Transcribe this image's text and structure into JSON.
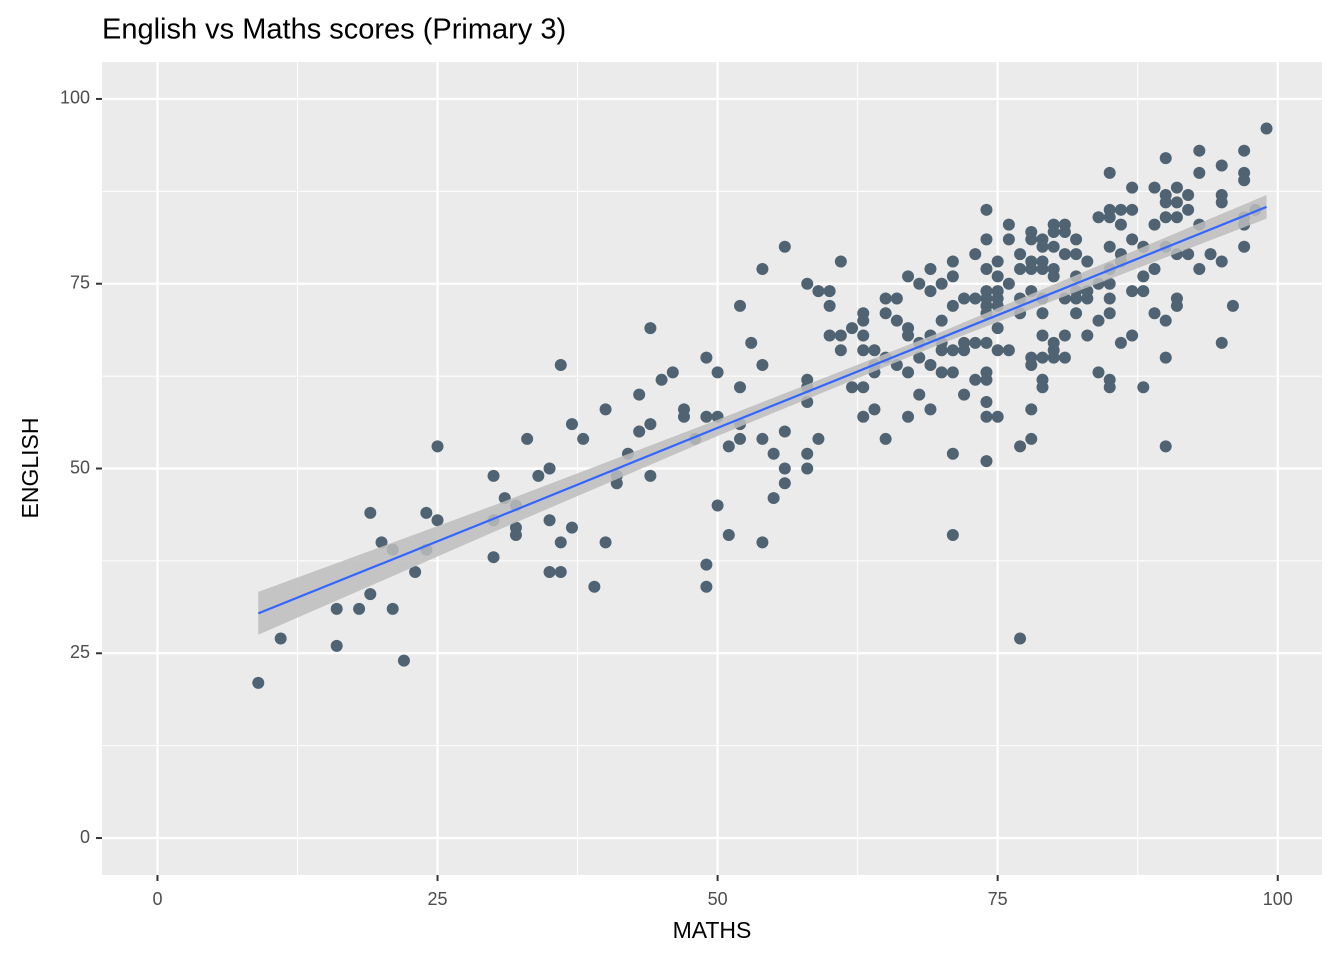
{
  "chart_data": {
    "type": "scatter",
    "title": "English vs Maths scores (Primary 3)",
    "x_label": "MATHS",
    "y_label": "ENGLISH",
    "x": [
      9,
      11,
      16,
      16,
      18,
      19,
      19,
      20,
      21,
      21,
      22,
      23,
      24,
      24,
      25,
      25,
      30,
      30,
      30,
      31,
      32,
      32,
      32,
      33,
      34,
      35,
      35,
      35,
      36,
      36,
      36,
      37,
      37,
      38,
      39,
      40,
      40,
      41,
      41,
      42,
      43,
      43,
      44,
      44,
      44,
      45,
      46,
      47,
      47,
      48,
      49,
      49,
      49,
      49,
      50,
      50,
      50,
      51,
      51,
      52,
      52,
      52,
      52,
      53,
      54,
      54,
      54,
      54,
      55,
      55,
      56,
      56,
      56,
      56,
      58,
      58,
      58,
      58,
      58,
      58,
      59,
      59,
      60,
      60,
      60,
      61,
      61,
      61,
      62,
      62,
      63,
      63,
      63,
      63,
      63,
      63,
      64,
      64,
      64,
      64,
      65,
      65,
      65,
      65,
      66,
      66,
      66,
      67,
      67,
      67,
      67,
      67,
      68,
      68,
      68,
      68,
      69,
      69,
      69,
      69,
      69,
      70,
      70,
      70,
      70,
      70,
      71,
      71,
      71,
      71,
      71,
      71,
      71,
      72,
      72,
      72,
      72,
      73,
      73,
      73,
      73,
      74,
      74,
      74,
      74,
      74,
      74,
      74,
      74,
      74,
      74,
      74,
      74,
      74,
      75,
      75,
      75,
      75,
      75,
      75,
      75,
      75,
      76,
      76,
      76,
      76,
      77,
      77,
      77,
      77,
      77,
      77,
      78,
      78,
      78,
      78,
      78,
      78,
      78,
      78,
      78,
      79,
      79,
      79,
      79,
      79,
      79,
      79,
      79,
      79,
      79,
      80,
      80,
      80,
      80,
      80,
      80,
      80,
      80,
      81,
      81,
      81,
      81,
      81,
      81,
      82,
      82,
      82,
      82,
      82,
      82,
      83,
      83,
      83,
      83,
      84,
      84,
      84,
      84,
      85,
      85,
      85,
      85,
      85,
      85,
      85,
      85,
      85,
      85,
      86,
      86,
      86,
      86,
      86,
      87,
      87,
      87,
      87,
      87,
      88,
      88,
      88,
      88,
      89,
      89,
      89,
      89,
      90,
      90,
      90,
      90,
      90,
      90,
      90,
      90,
      91,
      91,
      91,
      91,
      91,
      91,
      92,
      92,
      92,
      93,
      93,
      93,
      93,
      94,
      95,
      95,
      95,
      95,
      95,
      96,
      97,
      97,
      97,
      97,
      97,
      97,
      98,
      99
    ],
    "values": [
      21,
      27,
      31,
      26,
      31,
      44,
      33,
      40,
      39,
      31,
      24,
      36,
      44,
      39,
      53,
      43,
      49,
      43,
      38,
      46,
      45,
      42,
      41,
      54,
      49,
      50,
      43,
      36,
      64,
      40,
      36,
      56,
      42,
      54,
      34,
      58,
      40,
      49,
      48,
      52,
      60,
      55,
      69,
      56,
      49,
      62,
      63,
      58,
      57,
      54,
      65,
      57,
      37,
      34,
      63,
      57,
      45,
      53,
      41,
      72,
      61,
      56,
      54,
      67,
      77,
      64,
      54,
      40,
      52,
      46,
      80,
      55,
      50,
      48,
      75,
      62,
      61,
      59,
      52,
      50,
      74,
      54,
      74,
      72,
      68,
      78,
      68,
      66,
      69,
      61,
      71,
      70,
      68,
      66,
      61,
      57,
      66,
      64,
      63,
      58,
      73,
      71,
      65,
      54,
      73,
      70,
      64,
      76,
      69,
      68,
      63,
      57,
      75,
      67,
      65,
      60,
      77,
      74,
      68,
      64,
      58,
      75,
      70,
      67,
      66,
      63,
      78,
      76,
      72,
      66,
      63,
      52,
      41,
      73,
      67,
      66,
      60,
      79,
      73,
      67,
      62,
      85,
      81,
      77,
      74,
      73,
      72,
      71,
      67,
      63,
      62,
      59,
      57,
      51,
      78,
      76,
      74,
      73,
      72,
      69,
      66,
      57,
      83,
      81,
      75,
      66,
      79,
      77,
      73,
      71,
      53,
      27,
      82,
      81,
      78,
      77,
      74,
      65,
      64,
      58,
      54,
      81,
      80,
      78,
      77,
      73,
      71,
      68,
      65,
      62,
      61,
      83,
      82,
      80,
      77,
      76,
      67,
      66,
      65,
      83,
      82,
      79,
      73,
      68,
      65,
      81,
      79,
      76,
      74,
      73,
      71,
      78,
      74,
      73,
      68,
      84,
      75,
      70,
      63,
      90,
      85,
      84,
      80,
      77,
      75,
      73,
      71,
      62,
      61,
      85,
      83,
      79,
      78,
      67,
      88,
      85,
      81,
      74,
      68,
      80,
      76,
      74,
      61,
      88,
      83,
      77,
      71,
      92,
      87,
      86,
      84,
      80,
      70,
      65,
      53,
      88,
      86,
      84,
      79,
      73,
      72,
      87,
      85,
      79,
      93,
      90,
      83,
      77,
      79,
      91,
      87,
      86,
      78,
      67,
      72,
      93,
      90,
      89,
      84,
      83,
      80,
      85,
      96
    ],
    "color": "#4f6372",
    "fit": {
      "x": [
        9,
        30,
        50,
        70,
        99
      ],
      "y": [
        30.4,
        43.2,
        55.5,
        67.7,
        85.4
      ],
      "lower": [
        27.5,
        41.4,
        54.4,
        66.9,
        83.8
      ],
      "upper": [
        33.3,
        45.0,
        56.6,
        68.5,
        87.0
      ],
      "color": "#3366ff",
      "band_color": "#bdbdbd"
    },
    "xlim": [
      -4.95,
      103.95
    ],
    "ylim": [
      -5,
      105
    ],
    "xticks": [
      0,
      25,
      50,
      75,
      100
    ],
    "yticks": [
      0,
      25,
      50,
      75,
      100
    ],
    "grid": true
  }
}
